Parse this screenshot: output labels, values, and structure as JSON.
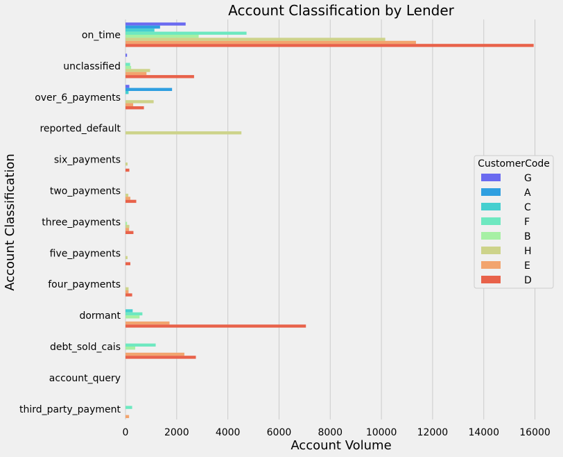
{
  "chart_data": {
    "type": "bar",
    "orientation": "horizontal",
    "title": "Account Classification by Lender",
    "xlabel": "Account Volume",
    "ylabel": "Account Classification",
    "xlim": [
      0,
      16500
    ],
    "xticks": [
      0,
      2000,
      4000,
      6000,
      8000,
      10000,
      12000,
      14000,
      16000
    ],
    "grid": "vertical",
    "legend": {
      "title": "CustomerCode",
      "placement": "right"
    },
    "categories": [
      "on_time",
      "unclassified",
      "over_6_payments",
      "reported_default",
      "six_payments",
      "two_payments",
      "three_payments",
      "five_payments",
      "four_payments",
      "dormant",
      "debt_sold_cais",
      "account_query",
      "third_party_payment"
    ],
    "series": [
      {
        "name": "G",
        "color": "#6a6af0",
        "values": [
          2350,
          60,
          150,
          0,
          0,
          0,
          0,
          0,
          0,
          0,
          0,
          0,
          0
        ]
      },
      {
        "name": "A",
        "color": "#2f9fe0",
        "values": [
          1350,
          0,
          1820,
          0,
          0,
          0,
          0,
          0,
          0,
          0,
          0,
          0,
          0
        ]
      },
      {
        "name": "C",
        "color": "#45cfcf",
        "values": [
          1130,
          0,
          120,
          0,
          0,
          0,
          0,
          0,
          0,
          280,
          0,
          0,
          0
        ]
      },
      {
        "name": "F",
        "color": "#6ee8c0",
        "values": [
          4730,
          180,
          0,
          0,
          0,
          0,
          0,
          0,
          0,
          660,
          1180,
          0,
          260
        ]
      },
      {
        "name": "B",
        "color": "#a6f0a4",
        "values": [
          2860,
          220,
          0,
          0,
          0,
          0,
          60,
          0,
          0,
          550,
          380,
          0,
          0
        ]
      },
      {
        "name": "H",
        "color": "#cdd38a",
        "values": [
          10150,
          960,
          1100,
          4530,
          80,
          110,
          150,
          80,
          120,
          0,
          0,
          0,
          0
        ]
      },
      {
        "name": "E",
        "color": "#f2a46e",
        "values": [
          11350,
          820,
          300,
          0,
          0,
          190,
          140,
          0,
          120,
          1720,
          2300,
          0,
          140
        ]
      },
      {
        "name": "D",
        "color": "#e8624a",
        "values": [
          15950,
          2680,
          720,
          0,
          150,
          420,
          310,
          190,
          260,
          7050,
          2750,
          0,
          0
        ]
      }
    ]
  }
}
